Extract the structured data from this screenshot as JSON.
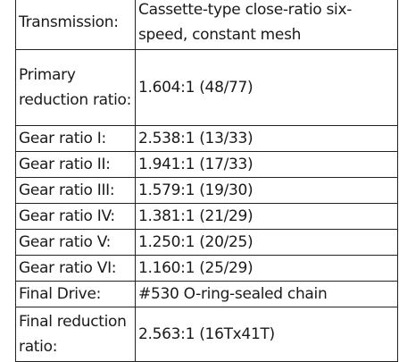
{
  "spec_table": {
    "rows": [
      {
        "label": "Transmission:",
        "value": "Cassette-type close-ratio six-speed, constant mesh"
      },
      {
        "label": "Primary reduction ratio:",
        "value": "1.604:1 (48/77)"
      },
      {
        "label": "Gear ratio I:",
        "value": "2.538:1 (13/33)"
      },
      {
        "label": "Gear ratio II:",
        "value": "1.941:1 (17/33)"
      },
      {
        "label": "Gear ratio III:",
        "value": "1.579:1 (19/30)"
      },
      {
        "label": "Gear ratio IV:",
        "value": "1.381:1 (21/29)"
      },
      {
        "label": "Gear ratio V:",
        "value": "1.250:1 (20/25)"
      },
      {
        "label": "Gear ratio VI:",
        "value": "1.160:1 (25/29)"
      },
      {
        "label": "Final Drive:",
        "value": "#530 O-ring-sealed chain"
      },
      {
        "label": "Final reduction ratio:",
        "value": "2.563:1 (16Tx41T)"
      }
    ]
  }
}
